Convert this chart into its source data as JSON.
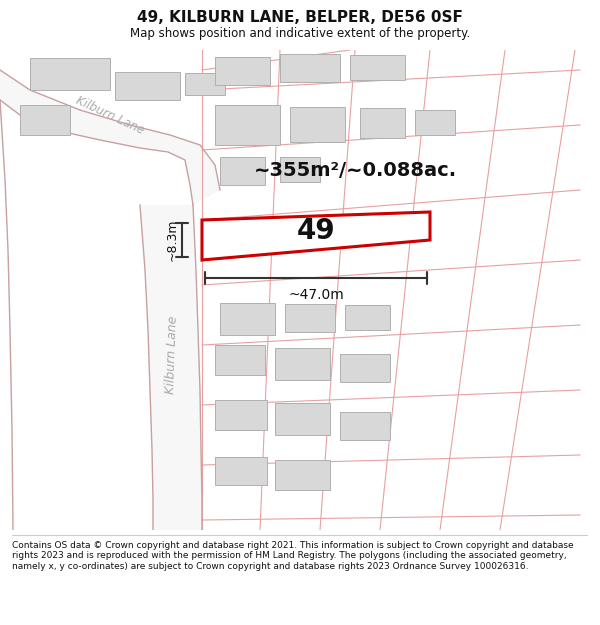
{
  "title": "49, KILBURN LANE, BELPER, DE56 0SF",
  "subtitle": "Map shows position and indicative extent of the property.",
  "area_text": "~355m²/~0.088ac.",
  "house_number": "49",
  "width_label": "~47.0m",
  "height_label": "~8.3m",
  "footer_text": "Contains OS data © Crown copyright and database right 2021. This information is subject to Crown copyright and database rights 2023 and is reproduced with the permission of HM Land Registry. The polygons (including the associated geometry, namely x, y co-ordinates) are subject to Crown copyright and database rights 2023 Ordnance Survey 100026316.",
  "bg_color": "#ffffff",
  "road_fill": "#f7f7f7",
  "road_edge_color": "#c8a0a0",
  "plot_line_color": "#e8a0a0",
  "building_fill": "#d8d8d8",
  "building_edge": "#b0b0b0",
  "property_fill": "#ffffff",
  "property_edge": "#cc0000",
  "text_color": "#111111",
  "dim_color": "#333333",
  "road_label_color": "#aaaaaa",
  "road_centerline_color": "#888888"
}
